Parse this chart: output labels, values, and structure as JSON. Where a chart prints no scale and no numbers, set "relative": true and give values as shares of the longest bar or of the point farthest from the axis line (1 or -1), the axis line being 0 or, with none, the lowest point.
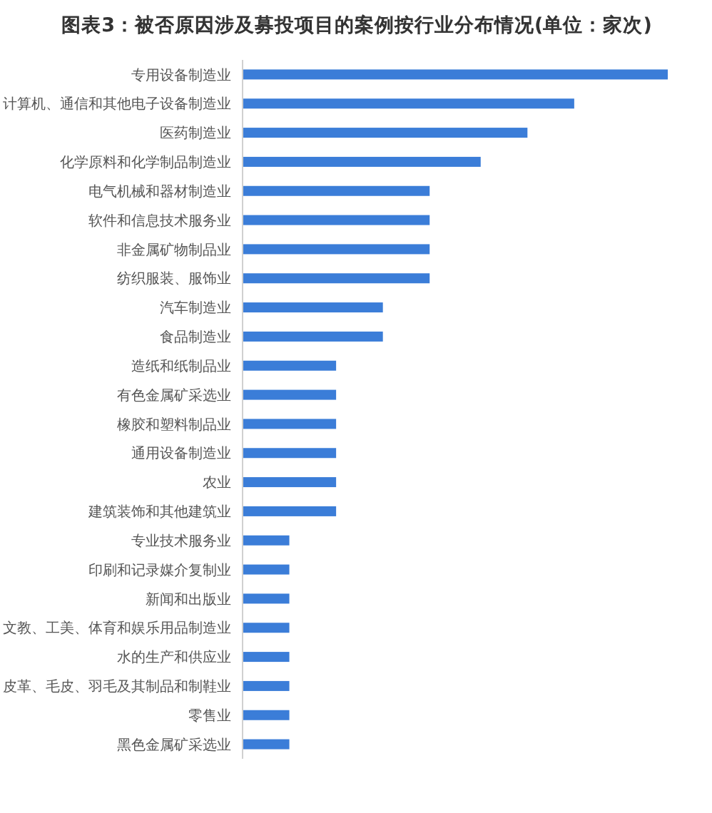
{
  "chart_data": {
    "type": "bar",
    "orientation": "horizontal",
    "relative": true,
    "title": "图表3：被否原因涉及募投项目的案例按行业分布情况(单位：家次)",
    "categories": [
      "专用设备制造业",
      "计算机、通信和其他电子设备制造业",
      "医药制造业",
      "化学原料和化学制品制造业",
      "电气机械和器材制造业",
      "软件和信息技术服务业",
      "非金属矿物制品业",
      "纺织服装、服饰业",
      "汽车制造业",
      "食品制造业",
      "造纸和纸制品业",
      "有色金属矿采选业",
      "橡胶和塑料制品业",
      "通用设备制造业",
      "农业",
      "建筑装饰和其他建筑业",
      "专业技术服务业",
      "印刷和记录媒介复制业",
      "新闻和出版业",
      "文教、工美、体育和娱乐用品制造业",
      "水的生产和供应业",
      "皮革、毛皮、羽毛及其制品和制鞋业",
      "零售业",
      "黑色金属矿采选业"
    ],
    "values": [
      1,
      0.78,
      0.67,
      0.56,
      0.44,
      0.44,
      0.44,
      0.44,
      0.33,
      0.33,
      0.22,
      0.22,
      0.22,
      0.22,
      0.22,
      0.22,
      0.11,
      0.11,
      0.11,
      0.11,
      0.11,
      0.11,
      0.11,
      0.11
    ],
    "color": "#3b7dd8"
  }
}
